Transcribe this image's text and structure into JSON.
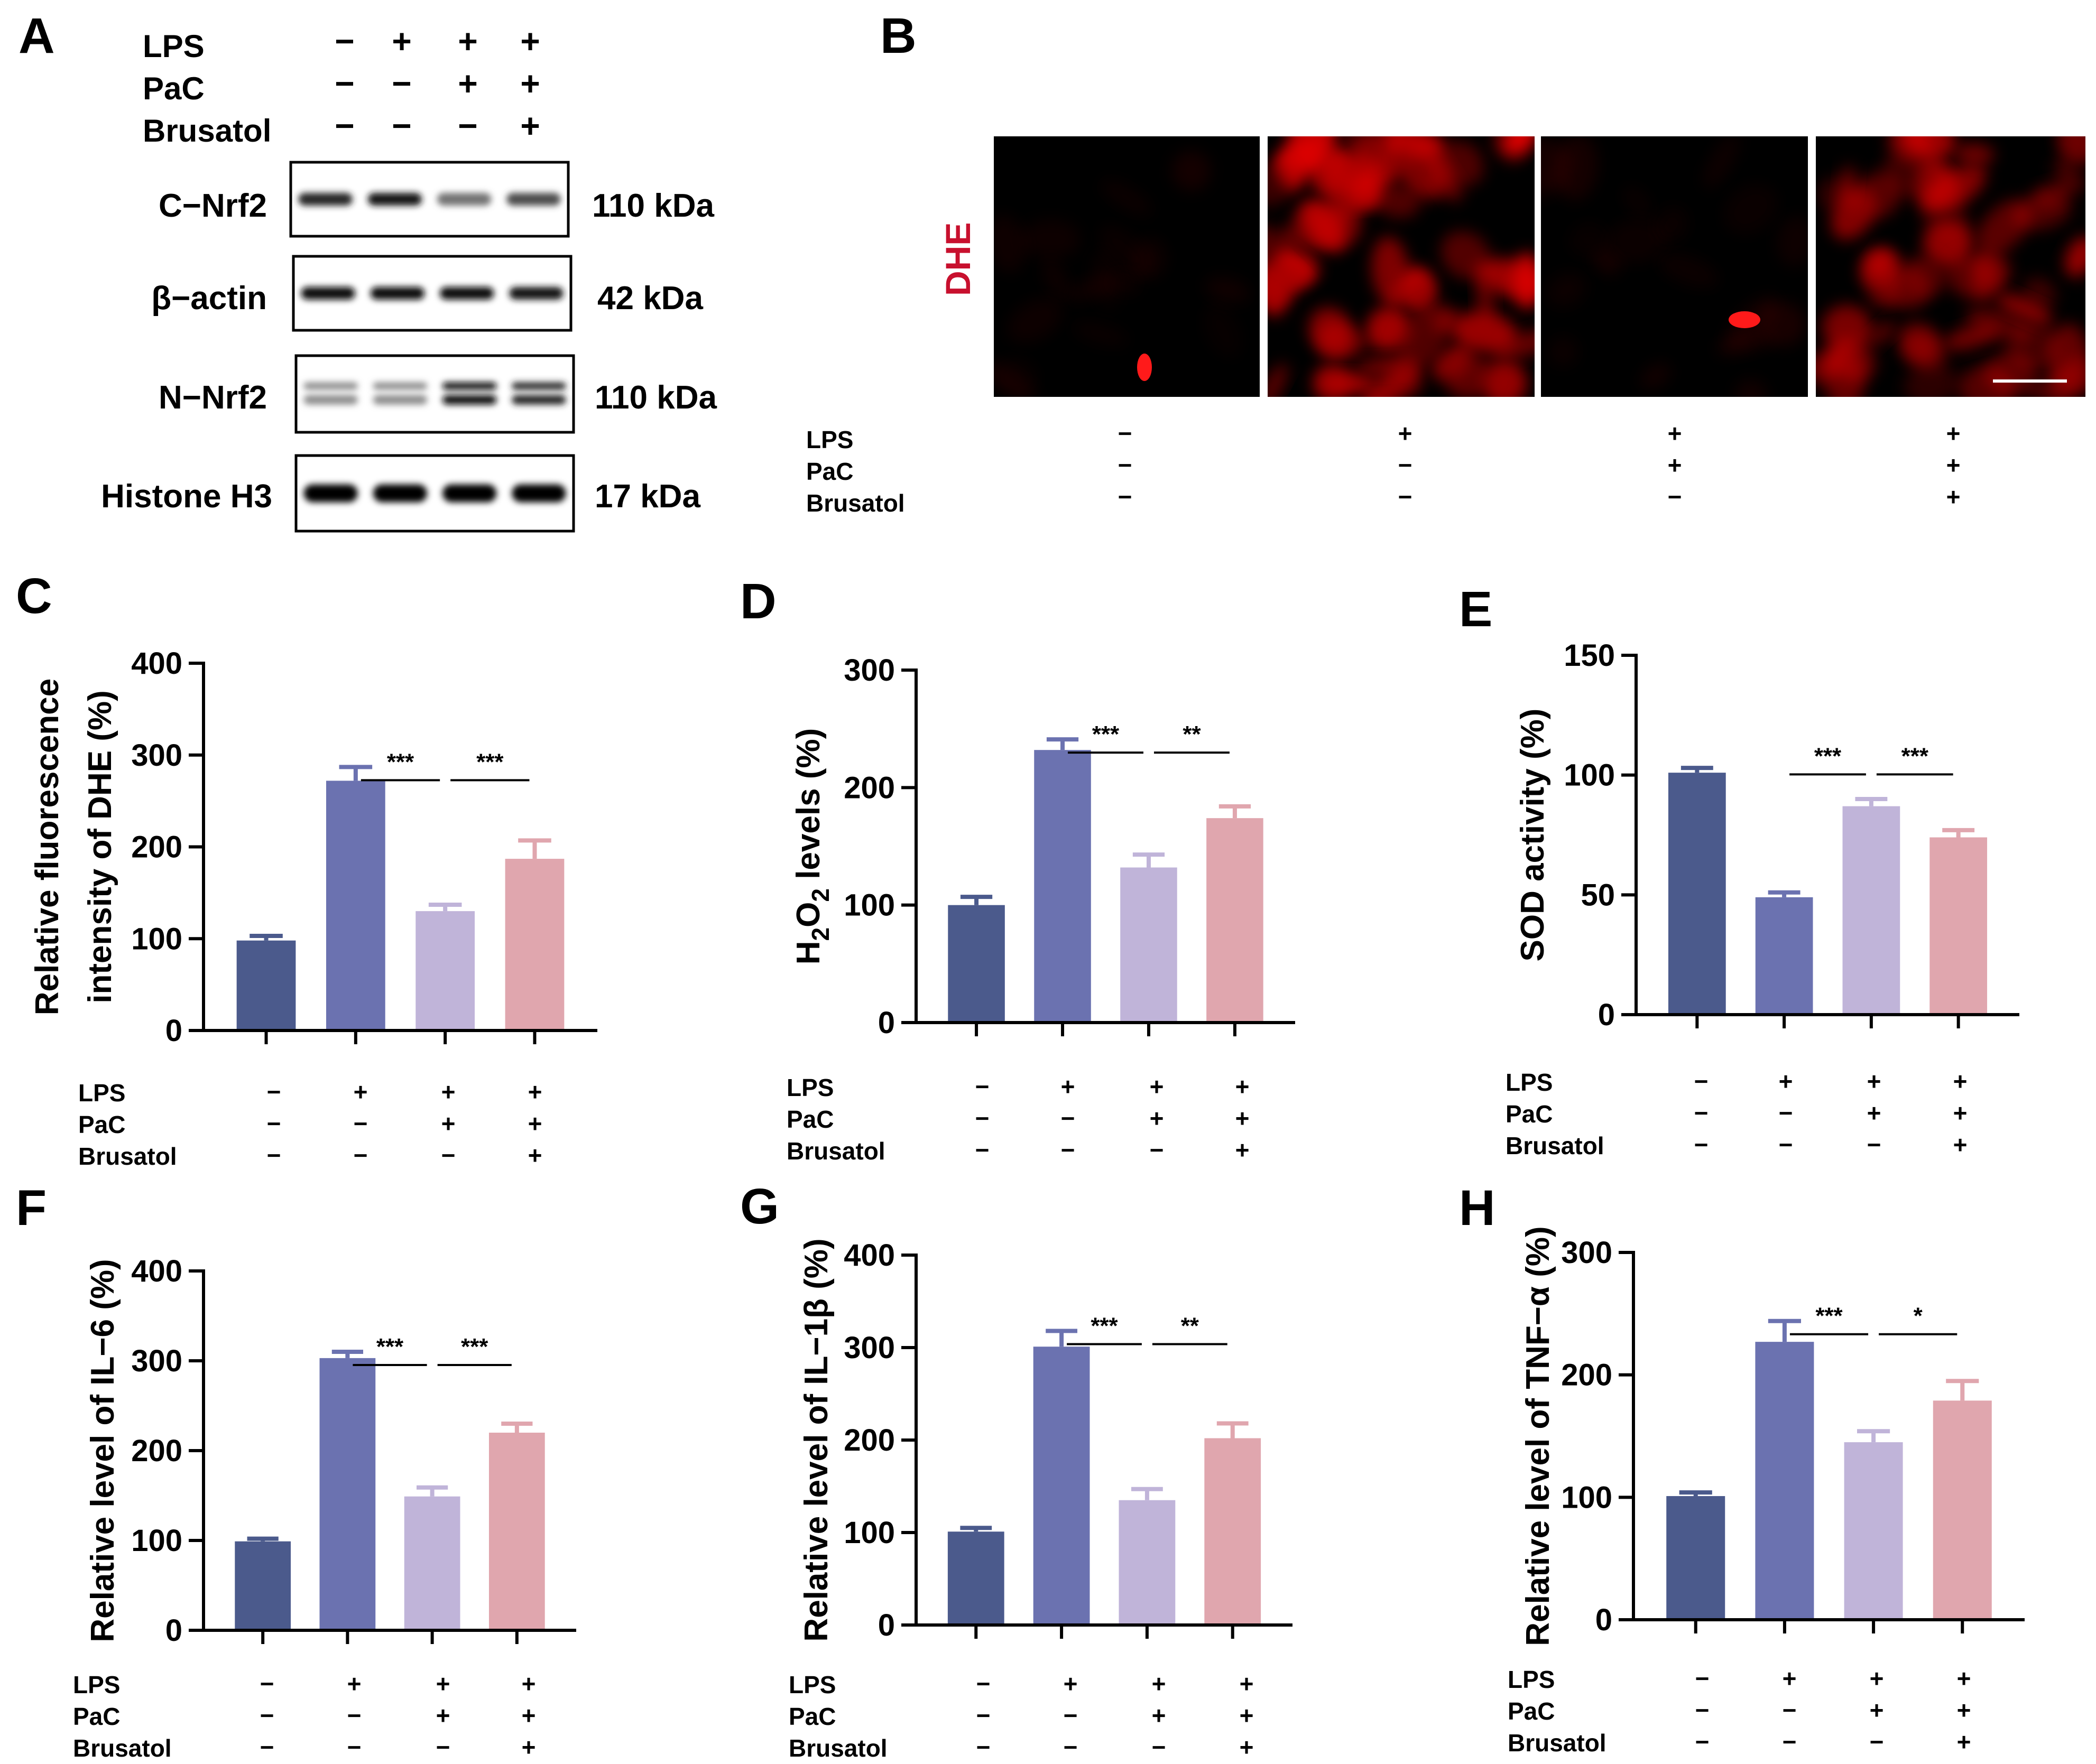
{
  "figure": {
    "panel_letters": [
      "A",
      "B",
      "C",
      "D",
      "E",
      "F",
      "G",
      "H"
    ],
    "treatment_labels": [
      "LPS",
      "PaC",
      "Brusatol"
    ],
    "treatment_signs": {
      "LPS": [
        "−",
        "+",
        "+",
        "+"
      ],
      "PaC": [
        "−",
        "−",
        "+",
        "+"
      ],
      "Brusatol": [
        "−",
        "−",
        "−",
        "+"
      ]
    },
    "bar_colors": [
      "#4b5a8c",
      "#6b72b0",
      "#c0b4d9",
      "#e0a6ae"
    ]
  },
  "western_blot": {
    "title": "A",
    "rows": [
      {
        "label": "C−Nrf2",
        "size": "110 kDa",
        "intensity": [
          0.85,
          0.9,
          0.55,
          0.7
        ],
        "doublet": false
      },
      {
        "label": "β−actin",
        "size": "42 kDa",
        "intensity": [
          0.95,
          0.95,
          0.95,
          0.9
        ],
        "doublet": false
      },
      {
        "label": "N−Nrf2",
        "size": "110 kDa",
        "intensity": [
          0.45,
          0.45,
          0.95,
          0.85
        ],
        "doublet": true
      },
      {
        "label": "Histone H3",
        "size": "17 kDa",
        "intensity": [
          1.0,
          1.0,
          1.0,
          1.0
        ],
        "doublet": false
      }
    ]
  },
  "microscopy": {
    "title": "B",
    "stain_label": "DHE",
    "stain_color": "#c8102e",
    "panel_brightness": [
      0.08,
      0.85,
      0.12,
      0.65
    ]
  },
  "chart_data": [
    {
      "panel": "C",
      "type": "bar",
      "categories": [
        "Control",
        "LPS",
        "LPS+PaC",
        "LPS+PaC+Brusatol"
      ],
      "values": [
        98,
        272,
        130,
        187
      ],
      "errors": [
        5,
        15,
        7,
        20
      ],
      "ylabel_lines": [
        "Relative fluorescence",
        "intensity of DHE (%)"
      ],
      "ylim": [
        0,
        400
      ],
      "yticks": [
        0,
        100,
        200,
        300,
        400
      ],
      "significance": [
        {
          "from": 1,
          "to": 2,
          "label": "***"
        },
        {
          "from": 2,
          "to": 3,
          "label": "***"
        }
      ]
    },
    {
      "panel": "D",
      "type": "bar",
      "categories": [
        "Control",
        "LPS",
        "LPS+PaC",
        "LPS+PaC+Brusatol"
      ],
      "values": [
        100,
        232,
        132,
        174
      ],
      "errors": [
        7,
        9,
        11,
        10
      ],
      "ylabel_lines": [
        "H2O2 levels (%)"
      ],
      "ylim": [
        0,
        300
      ],
      "yticks": [
        0,
        100,
        200,
        300
      ],
      "significance": [
        {
          "from": 1,
          "to": 2,
          "label": "***"
        },
        {
          "from": 2,
          "to": 3,
          "label": "**"
        }
      ]
    },
    {
      "panel": "E",
      "type": "bar",
      "categories": [
        "Control",
        "LPS",
        "LPS+PaC",
        "LPS+PaC+Brusatol"
      ],
      "values": [
        101,
        49,
        87,
        74
      ],
      "errors": [
        2,
        2,
        3,
        3
      ],
      "ylabel_lines": [
        "SOD activity (%)"
      ],
      "ylim": [
        0,
        150
      ],
      "yticks": [
        0,
        50,
        100,
        150
      ],
      "significance": [
        {
          "from": 1,
          "to": 2,
          "label": "***"
        },
        {
          "from": 2,
          "to": 3,
          "label": "***"
        }
      ]
    },
    {
      "panel": "F",
      "type": "bar",
      "categories": [
        "Control",
        "LPS",
        "LPS+PaC",
        "LPS+PaC+Brusatol"
      ],
      "values": [
        99,
        303,
        149,
        220
      ],
      "errors": [
        3,
        7,
        10,
        10
      ],
      "ylabel_lines": [
        "Relative level of IL−6 (%)"
      ],
      "ylim": [
        0,
        400
      ],
      "yticks": [
        0,
        100,
        200,
        300,
        400
      ],
      "significance": [
        {
          "from": 1,
          "to": 2,
          "label": "***"
        },
        {
          "from": 2,
          "to": 3,
          "label": "***"
        }
      ]
    },
    {
      "panel": "G",
      "type": "bar",
      "categories": [
        "Control",
        "LPS",
        "LPS+PaC",
        "LPS+PaC+Brusatol"
      ],
      "values": [
        101,
        301,
        135,
        202
      ],
      "errors": [
        4,
        17,
        12,
        16
      ],
      "ylabel_lines": [
        "Relative level of IL−1β (%)"
      ],
      "ylim": [
        0,
        400
      ],
      "yticks": [
        0,
        100,
        200,
        300,
        400
      ],
      "significance": [
        {
          "from": 1,
          "to": 2,
          "label": "***"
        },
        {
          "from": 2,
          "to": 3,
          "label": "**"
        }
      ]
    },
    {
      "panel": "H",
      "type": "bar",
      "categories": [
        "Control",
        "LPS",
        "LPS+PaC",
        "LPS+PaC+Brusatol"
      ],
      "values": [
        101,
        227,
        145,
        179
      ],
      "errors": [
        3,
        17,
        9,
        16
      ],
      "ylabel_lines": [
        "Relative level of TNF−α (%)"
      ],
      "ylim": [
        0,
        300
      ],
      "yticks": [
        0,
        100,
        200,
        300
      ],
      "significance": [
        {
          "from": 1,
          "to": 2,
          "label": "***"
        },
        {
          "from": 2,
          "to": 3,
          "label": "*"
        }
      ]
    }
  ]
}
